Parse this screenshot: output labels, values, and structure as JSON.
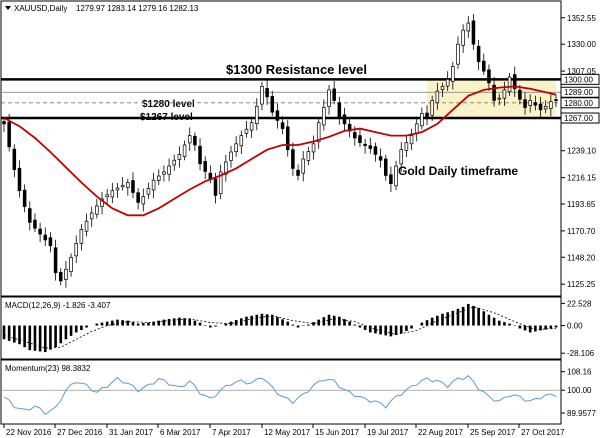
{
  "header": {
    "symbol": "XAUUSD,Daily",
    "ohlc": "1279.97 1283.14 1279.16 1282.13"
  },
  "indicators": {
    "macd_label": "MACD(12,26,9) -1.826 -3.407",
    "momentum_label": "Momentum(23) 98.3832"
  },
  "annotations": {
    "resistance": "$1300 Resistance level",
    "level_1280": "$1280 level",
    "level_1267": "$1267 level",
    "timeframe": "Gold Daily timeframe"
  },
  "colors": {
    "candles": "#000000",
    "moving_average": "#c00000",
    "momentum_line": "#5b9bd5",
    "range_zone": "#fbf3c8",
    "level_lines": "#000000"
  },
  "chart_data": [
    {
      "type": "candlestick",
      "title": "XAUUSD,Daily",
      "price_axis_ticks": [
        1125.25,
        1148.2,
        1170.7,
        1193.65,
        1216.15,
        1239.1,
        1267.0,
        1280.0,
        1289.0,
        1300.0,
        1307.05,
        1330.0,
        1352.55
      ],
      "highlighted_levels": [
        1300.0,
        1289.0,
        1280.0,
        1267.0
      ],
      "date_axis_ticks": [
        "22 Nov 2016",
        "27 Dec 2016",
        "31 Jan 2017",
        "6 Mar 2017",
        "7 Apr 2017",
        "12 May 2017",
        "15 Jun 2017",
        "19 Jul 2017",
        "22 Aug 2017",
        "25 Sep 2017",
        "27 Oct 2017"
      ],
      "ylim": [
        1116,
        1366
      ],
      "close_path": [
        [
          0,
          1262
        ],
        [
          2,
          1223
        ],
        [
          3,
          1205
        ],
        [
          5,
          1178
        ],
        [
          7,
          1168
        ],
        [
          9,
          1158
        ],
        [
          10,
          1135
        ],
        [
          11,
          1128
        ],
        [
          13,
          1148
        ],
        [
          15,
          1172
        ],
        [
          17,
          1186
        ],
        [
          19,
          1198
        ],
        [
          21,
          1205
        ],
        [
          24,
          1212
        ],
        [
          26,
          1195
        ],
        [
          27,
          1200
        ],
        [
          29,
          1214
        ],
        [
          31,
          1221
        ],
        [
          34,
          1236
        ],
        [
          36,
          1252
        ],
        [
          37,
          1244
        ],
        [
          38,
          1228
        ],
        [
          40,
          1215
        ],
        [
          41,
          1201
        ],
        [
          42,
          1221
        ],
        [
          44,
          1238
        ],
        [
          46,
          1252
        ],
        [
          48,
          1263
        ],
        [
          49,
          1277
        ],
        [
          50,
          1294
        ],
        [
          51,
          1285
        ],
        [
          52,
          1272
        ],
        [
          54,
          1258
        ],
        [
          55,
          1240
        ],
        [
          56,
          1224
        ],
        [
          57,
          1218
        ],
        [
          58,
          1232
        ],
        [
          60,
          1245
        ],
        [
          61,
          1263
        ],
        [
          62,
          1276
        ],
        [
          63,
          1291
        ],
        [
          64,
          1282
        ],
        [
          65,
          1268
        ],
        [
          66,
          1262
        ],
        [
          68,
          1250
        ],
        [
          69,
          1246
        ],
        [
          71,
          1241
        ],
        [
          73,
          1231
        ],
        [
          74,
          1218
        ],
        [
          75,
          1211
        ],
        [
          76,
          1226
        ],
        [
          77,
          1240
        ],
        [
          79,
          1252
        ],
        [
          80,
          1262
        ],
        [
          81,
          1271
        ],
        [
          82,
          1268
        ],
        [
          83,
          1282
        ],
        [
          84,
          1290
        ],
        [
          85,
          1294
        ],
        [
          86,
          1300
        ],
        [
          87,
          1311
        ],
        [
          88,
          1330
        ],
        [
          89,
          1342
        ],
        [
          90,
          1348
        ],
        [
          91,
          1330
        ],
        [
          92,
          1315
        ],
        [
          93,
          1307
        ],
        [
          94,
          1297
        ],
        [
          95,
          1282
        ],
        [
          96,
          1284
        ],
        [
          97,
          1291
        ],
        [
          98,
          1302
        ],
        [
          99,
          1292
        ],
        [
          100,
          1283
        ],
        [
          101,
          1276
        ],
        [
          102,
          1282
        ],
        [
          104,
          1274
        ],
        [
          105,
          1277
        ],
        [
          106,
          1281
        ],
        [
          107,
          1282
        ]
      ],
      "moving_average_path": [
        [
          0,
          1267
        ],
        [
          3,
          1260
        ],
        [
          6,
          1250
        ],
        [
          9,
          1238
        ],
        [
          12,
          1225
        ],
        [
          15,
          1212
        ],
        [
          18,
          1200
        ],
        [
          21,
          1190
        ],
        [
          24,
          1184
        ],
        [
          27,
          1184
        ],
        [
          30,
          1190
        ],
        [
          33,
          1198
        ],
        [
          36,
          1206
        ],
        [
          39,
          1213
        ],
        [
          42,
          1218
        ],
        [
          45,
          1224
        ],
        [
          48,
          1232
        ],
        [
          51,
          1240
        ],
        [
          54,
          1244
        ],
        [
          57,
          1244
        ],
        [
          60,
          1247
        ],
        [
          63,
          1251
        ],
        [
          66,
          1256
        ],
        [
          69,
          1258
        ],
        [
          72,
          1255
        ],
        [
          75,
          1252
        ],
        [
          78,
          1252
        ],
        [
          81,
          1255
        ],
        [
          84,
          1262
        ],
        [
          87,
          1274
        ],
        [
          90,
          1286
        ],
        [
          93,
          1291
        ],
        [
          96,
          1293
        ],
        [
          99,
          1294
        ],
        [
          102,
          1292
        ],
        [
          105,
          1289
        ],
        [
          107,
          1287
        ]
      ]
    },
    {
      "type": "bar",
      "title": "MACD(12,26,9) -1.826 -3.407",
      "axis_ticks": [
        22.528,
        0.0,
        -28.106
      ],
      "ylim": [
        -33,
        27
      ],
      "histogram_path": [
        [
          0,
          -14
        ],
        [
          3,
          -19
        ],
        [
          5,
          -25
        ],
        [
          8,
          -27
        ],
        [
          10,
          -22
        ],
        [
          12,
          -14
        ],
        [
          14,
          -7
        ],
        [
          16,
          -2
        ],
        [
          18,
          2
        ],
        [
          20,
          4
        ],
        [
          22,
          6
        ],
        [
          24,
          5
        ],
        [
          26,
          2
        ],
        [
          28,
          3
        ],
        [
          31,
          6
        ],
        [
          34,
          8
        ],
        [
          36,
          7
        ],
        [
          38,
          3
        ],
        [
          40,
          -2
        ],
        [
          42,
          0
        ],
        [
          44,
          4
        ],
        [
          47,
          9
        ],
        [
          50,
          12
        ],
        [
          52,
          11
        ],
        [
          55,
          4
        ],
        [
          57,
          -2
        ],
        [
          59,
          1
        ],
        [
          61,
          6
        ],
        [
          63,
          11
        ],
        [
          65,
          9
        ],
        [
          67,
          4
        ],
        [
          69,
          -2
        ],
        [
          71,
          -7
        ],
        [
          73,
          -9
        ],
        [
          75,
          -11
        ],
        [
          77,
          -8
        ],
        [
          79,
          -3
        ],
        [
          81,
          3
        ],
        [
          83,
          8
        ],
        [
          85,
          12
        ],
        [
          87,
          15
        ],
        [
          89,
          19
        ],
        [
          90,
          22
        ],
        [
          92,
          18
        ],
        [
          94,
          11
        ],
        [
          96,
          5
        ],
        [
          98,
          2
        ],
        [
          100,
          -3
        ],
        [
          102,
          -7
        ],
        [
          104,
          -5
        ],
        [
          106,
          -3
        ],
        [
          107,
          -2
        ]
      ],
      "signal_path": [
        [
          0,
          -10
        ],
        [
          4,
          -16
        ],
        [
          8,
          -23
        ],
        [
          11,
          -22
        ],
        [
          14,
          -14
        ],
        [
          17,
          -6
        ],
        [
          20,
          0
        ],
        [
          24,
          4
        ],
        [
          28,
          3
        ],
        [
          32,
          5
        ],
        [
          36,
          7
        ],
        [
          40,
          3
        ],
        [
          44,
          2
        ],
        [
          48,
          7
        ],
        [
          52,
          10
        ],
        [
          56,
          5
        ],
        [
          60,
          2
        ],
        [
          64,
          7
        ],
        [
          68,
          4
        ],
        [
          72,
          -4
        ],
        [
          76,
          -9
        ],
        [
          80,
          -5
        ],
        [
          84,
          5
        ],
        [
          88,
          13
        ],
        [
          91,
          19
        ],
        [
          95,
          13
        ],
        [
          99,
          4
        ],
        [
          103,
          -4
        ],
        [
          107,
          -3
        ]
      ]
    },
    {
      "type": "line",
      "title": "Momentum(23) 98.3832",
      "axis_ticks": [
        108.16,
        100.0,
        89.9577
      ],
      "ylim": [
        86,
        112
      ],
      "momentum_path": [
        [
          0,
          97
        ],
        [
          2,
          93
        ],
        [
          4,
          91
        ],
        [
          6,
          93
        ],
        [
          8,
          90
        ],
        [
          10,
          92
        ],
        [
          12,
          100
        ],
        [
          14,
          104
        ],
        [
          16,
          102
        ],
        [
          18,
          99
        ],
        [
          20,
          102
        ],
        [
          22,
          105
        ],
        [
          24,
          103
        ],
        [
          26,
          100
        ],
        [
          28,
          102
        ],
        [
          30,
          105
        ],
        [
          32,
          103
        ],
        [
          34,
          101
        ],
        [
          36,
          104
        ],
        [
          38,
          99
        ],
        [
          40,
          96
        ],
        [
          42,
          100
        ],
        [
          44,
          103
        ],
        [
          46,
          104
        ],
        [
          48,
          103
        ],
        [
          50,
          106
        ],
        [
          52,
          101
        ],
        [
          54,
          97
        ],
        [
          56,
          95
        ],
        [
          58,
          98
        ],
        [
          60,
          102
        ],
        [
          62,
          105
        ],
        [
          64,
          104
        ],
        [
          66,
          100
        ],
        [
          68,
          98
        ],
        [
          70,
          96
        ],
        [
          72,
          95
        ],
        [
          74,
          93
        ],
        [
          76,
          97
        ],
        [
          78,
          100
        ],
        [
          80,
          103
        ],
        [
          82,
          105
        ],
        [
          84,
          104
        ],
        [
          86,
          102
        ],
        [
          88,
          105
        ],
        [
          90,
          106
        ],
        [
          92,
          101
        ],
        [
          94,
          97
        ],
        [
          96,
          95
        ],
        [
          98,
          98
        ],
        [
          100,
          97
        ],
        [
          102,
          95
        ],
        [
          104,
          97
        ],
        [
          106,
          98
        ],
        [
          107,
          98
        ]
      ]
    }
  ]
}
